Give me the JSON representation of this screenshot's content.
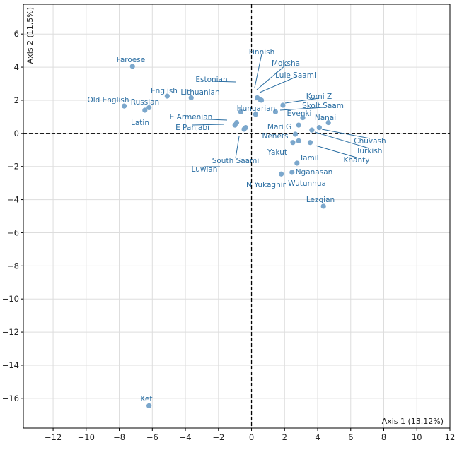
{
  "chart_data": {
    "type": "scatter",
    "xlabel": "Axis 1 (13.12%)",
    "ylabel": "Axis 2 (11.5%)",
    "xlim": [
      -13.8,
      12
    ],
    "ylim": [
      -17.8,
      7.8
    ],
    "xticks": [
      -12,
      -10,
      -8,
      -6,
      -4,
      -2,
      0,
      2,
      4,
      6,
      8,
      10,
      12
    ],
    "yticks": [
      6,
      4,
      2,
      0,
      -2,
      -4,
      -6,
      -8,
      -10,
      -12,
      -14,
      -16
    ],
    "tick_labels_x": [
      "−12",
      "−10",
      "−8",
      "−6",
      "−4",
      "−2",
      "0",
      "2",
      "4",
      "6",
      "8",
      "10",
      "12"
    ],
    "tick_labels_y": [
      "6",
      "4",
      "2",
      "0",
      "−2",
      "−4",
      "−6",
      "−8",
      "−10",
      "−12",
      "−14",
      "−16"
    ],
    "grid": true,
    "point_color": "#7ba7cc",
    "label_color": "#2c6fa3",
    "points": [
      {
        "name": "Faroese",
        "x": -7.2,
        "y": 4.05
      },
      {
        "name": "English",
        "x": -5.1,
        "y": 2.25
      },
      {
        "name": "Old English",
        "x": -7.7,
        "y": 1.65
      },
      {
        "name": "Russian",
        "x": -6.2,
        "y": 1.55
      },
      {
        "name": "Latin",
        "x": -6.45,
        "y": 1.4
      },
      {
        "name": "Lithuanian",
        "x": -3.65,
        "y": 2.15
      },
      {
        "name": "Estonian",
        "x": -0.65,
        "y": 1.3
      },
      {
        "name": "E Armenian",
        "x": -0.9,
        "y": 0.65
      },
      {
        "name": "E Panjabi",
        "x": -1.0,
        "y": 0.5
      },
      {
        "name": "South Saami",
        "x": -0.35,
        "y": 0.35
      },
      {
        "name": "Luwian",
        "x": -0.45,
        "y": 0.25
      },
      {
        "name": "Hungarian",
        "x": 0.25,
        "y": 1.15
      },
      {
        "name": "Finnish",
        "x": 0.35,
        "y": 2.15
      },
      {
        "name": "Moksha",
        "x": 0.5,
        "y": 2.05
      },
      {
        "name": "Lule Saami",
        "x": 0.6,
        "y": 2.0
      },
      {
        "name": "Komi Z",
        "x": 1.9,
        "y": 1.7
      },
      {
        "name": "Skolt Saami",
        "x": 1.45,
        "y": 1.3
      },
      {
        "name": "Evenki",
        "x": 3.1,
        "y": 0.95
      },
      {
        "name": "Mari G",
        "x": 2.85,
        "y": 0.5
      },
      {
        "name": "Nanai",
        "x": 4.65,
        "y": 0.65
      },
      {
        "name": "Nenets",
        "x": 2.65,
        "y": -0.05
      },
      {
        "name": "Chuvash",
        "x": 4.1,
        "y": 0.35
      },
      {
        "name": "Turkish",
        "x": 3.65,
        "y": 0.2
      },
      {
        "name": "Khanty",
        "x": 2.5,
        "y": -0.55
      },
      {
        "name": "Yakut",
        "x": 3.55,
        "y": -0.55
      },
      {
        "name": "Tamil",
        "x": 2.85,
        "y": -0.45
      },
      {
        "name": "Nganasan",
        "x": 2.75,
        "y": -1.8
      },
      {
        "name": "Wutunhua",
        "x": 2.45,
        "y": -2.35
      },
      {
        "name": "N Yukaghir",
        "x": 1.8,
        "y": -2.45
      },
      {
        "name": "Lezgian",
        "x": 4.35,
        "y": -4.4
      },
      {
        "name": "Ket",
        "x": -6.2,
        "y": -16.45
      }
    ]
  }
}
